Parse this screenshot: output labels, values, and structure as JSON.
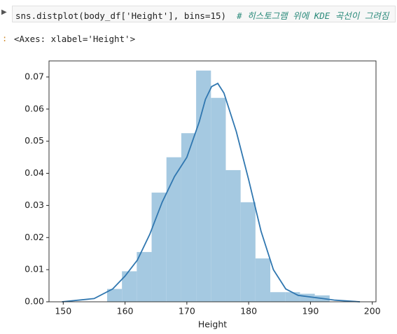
{
  "code": "sns.distplot(body_df['Height'], bins=15)",
  "comment": "# 히스토그램 위에 KDE 곡선이 그려짐",
  "output": "<Axes: xlabel='Height'>",
  "chart_data": {
    "type": "histogram",
    "xlabel": "Height",
    "bins": [
      157.1,
      159.5,
      161.9,
      164.3,
      166.7,
      169.1,
      171.5,
      173.9,
      176.3,
      178.7,
      181.1,
      183.5,
      185.9,
      188.3,
      190.7,
      193.1
    ],
    "values": [
      0.004,
      0.0095,
      0.0155,
      0.034,
      0.045,
      0.0525,
      0.072,
      0.0635,
      0.041,
      0.031,
      0.0135,
      0.003,
      0.003,
      0.0025,
      0.002
    ],
    "color": "#a5c9e1",
    "kde": {
      "type": "line",
      "color": "#3077b0",
      "x": [
        149.8,
        155,
        158,
        160,
        162,
        164,
        166,
        168,
        170,
        172,
        173,
        174,
        175,
        176,
        178,
        180,
        182,
        184,
        186,
        188,
        190,
        192,
        194,
        198
      ],
      "y": [
        0,
        0.001,
        0.004,
        0.008,
        0.013,
        0.021,
        0.031,
        0.039,
        0.045,
        0.056,
        0.063,
        0.067,
        0.068,
        0.065,
        0.053,
        0.038,
        0.022,
        0.01,
        0.004,
        0.002,
        0.0015,
        0.001,
        0.0005,
        0
      ]
    },
    "xlim": [
      147.7,
      200.6
    ],
    "ylim": [
      0,
      0.075
    ],
    "xticks": [
      150,
      160,
      170,
      180,
      190,
      200
    ],
    "yticks": [
      {
        "value": 0,
        "label": "0.00"
      },
      {
        "value": 0.01,
        "label": "0.01"
      },
      {
        "value": 0.02,
        "label": "0.02"
      },
      {
        "value": 0.03,
        "label": "0.03"
      },
      {
        "value": 0.04,
        "label": "0.04"
      },
      {
        "value": 0.05,
        "label": "0.05"
      },
      {
        "value": 0.06,
        "label": "0.06"
      },
      {
        "value": 0.07,
        "label": "0.07"
      }
    ]
  }
}
